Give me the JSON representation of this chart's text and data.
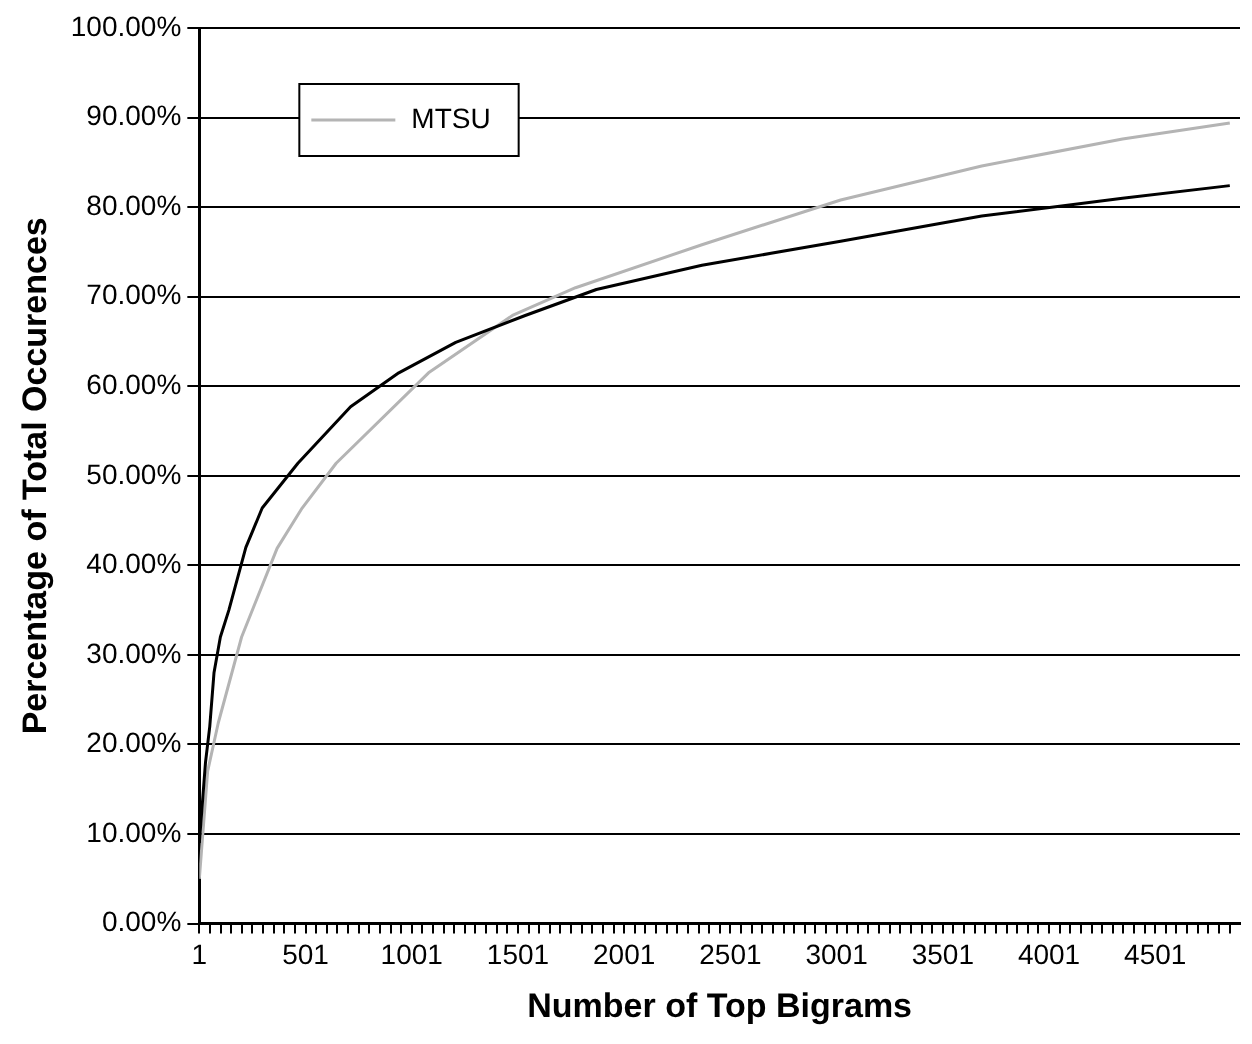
{
  "chart_data": {
    "type": "line",
    "xlabel": "Number of Top Bigrams",
    "ylabel": "Percentage of Total Occurences",
    "xlim": [
      1,
      4900
    ],
    "ylim": [
      0,
      100
    ],
    "xticks": [
      1,
      {
        "value": 51,
        "label": null
      },
      {
        "value": 101,
        "label": null
      },
      {
        "value": 151,
        "label": null
      },
      {
        "value": 201,
        "label": null
      },
      {
        "value": 251,
        "label": null
      },
      {
        "value": 301,
        "label": null
      },
      {
        "value": 351,
        "label": null
      },
      {
        "value": 401,
        "label": null
      },
      {
        "value": 451,
        "label": null
      },
      501,
      {
        "value": 551,
        "label": null
      },
      {
        "value": 601,
        "label": null
      },
      {
        "value": 651,
        "label": null
      },
      {
        "value": 701,
        "label": null
      },
      {
        "value": 751,
        "label": null
      },
      {
        "value": 801,
        "label": null
      },
      {
        "value": 851,
        "label": null
      },
      {
        "value": 901,
        "label": null
      },
      {
        "value": 951,
        "label": null
      },
      1001,
      {
        "value": 1051,
        "label": null
      },
      {
        "value": 1101,
        "label": null
      },
      {
        "value": 1151,
        "label": null
      },
      {
        "value": 1201,
        "label": null
      },
      {
        "value": 1251,
        "label": null
      },
      {
        "value": 1301,
        "label": null
      },
      {
        "value": 1351,
        "label": null
      },
      {
        "value": 1401,
        "label": null
      },
      {
        "value": 1451,
        "label": null
      },
      1501,
      {
        "value": 1551,
        "label": null
      },
      {
        "value": 1601,
        "label": null
      },
      {
        "value": 1651,
        "label": null
      },
      {
        "value": 1701,
        "label": null
      },
      {
        "value": 1751,
        "label": null
      },
      {
        "value": 1801,
        "label": null
      },
      {
        "value": 1851,
        "label": null
      },
      {
        "value": 1901,
        "label": null
      },
      {
        "value": 1951,
        "label": null
      },
      2001,
      {
        "value": 2051,
        "label": null
      },
      {
        "value": 2101,
        "label": null
      },
      {
        "value": 2151,
        "label": null
      },
      {
        "value": 2201,
        "label": null
      },
      {
        "value": 2251,
        "label": null
      },
      {
        "value": 2301,
        "label": null
      },
      {
        "value": 2351,
        "label": null
      },
      {
        "value": 2401,
        "label": null
      },
      {
        "value": 2451,
        "label": null
      },
      2501,
      {
        "value": 2551,
        "label": null
      },
      {
        "value": 2601,
        "label": null
      },
      {
        "value": 2651,
        "label": null
      },
      {
        "value": 2701,
        "label": null
      },
      {
        "value": 2751,
        "label": null
      },
      {
        "value": 2801,
        "label": null
      },
      {
        "value": 2851,
        "label": null
      },
      {
        "value": 2901,
        "label": null
      },
      {
        "value": 2951,
        "label": null
      },
      3001,
      {
        "value": 3051,
        "label": null
      },
      {
        "value": 3101,
        "label": null
      },
      {
        "value": 3151,
        "label": null
      },
      {
        "value": 3201,
        "label": null
      },
      {
        "value": 3251,
        "label": null
      },
      {
        "value": 3301,
        "label": null
      },
      {
        "value": 3351,
        "label": null
      },
      {
        "value": 3401,
        "label": null
      },
      {
        "value": 3451,
        "label": null
      },
      3501,
      {
        "value": 3551,
        "label": null
      },
      {
        "value": 3601,
        "label": null
      },
      {
        "value": 3651,
        "label": null
      },
      {
        "value": 3701,
        "label": null
      },
      {
        "value": 3751,
        "label": null
      },
      {
        "value": 3801,
        "label": null
      },
      {
        "value": 3851,
        "label": null
      },
      {
        "value": 3901,
        "label": null
      },
      {
        "value": 3951,
        "label": null
      },
      4001,
      {
        "value": 4051,
        "label": null
      },
      {
        "value": 4101,
        "label": null
      },
      {
        "value": 4151,
        "label": null
      },
      {
        "value": 4201,
        "label": null
      },
      {
        "value": 4251,
        "label": null
      },
      {
        "value": 4301,
        "label": null
      },
      {
        "value": 4351,
        "label": null
      },
      {
        "value": 4401,
        "label": null
      },
      {
        "value": 4451,
        "label": null
      },
      4501,
      {
        "value": 4551,
        "label": null
      },
      {
        "value": 4601,
        "label": null
      },
      {
        "value": 4651,
        "label": null
      },
      {
        "value": 4701,
        "label": null
      },
      {
        "value": 4751,
        "label": null
      },
      {
        "value": 4801,
        "label": null
      },
      {
        "value": 4851,
        "label": null
      }
    ],
    "yticks": [
      {
        "value": 0,
        "label": "0.00%"
      },
      {
        "value": 10,
        "label": "10.00%"
      },
      {
        "value": 20,
        "label": "20.00%"
      },
      {
        "value": 30,
        "label": "30.00%"
      },
      {
        "value": 40,
        "label": "40.00%"
      },
      {
        "value": 50,
        "label": "50.00%"
      },
      {
        "value": 60,
        "label": "60.00%"
      },
      {
        "value": 70,
        "label": "70.00%"
      },
      {
        "value": 80,
        "label": "80.00%"
      },
      {
        "value": 90,
        "label": "90.00%"
      },
      {
        "value": 100,
        "label": "100.00%"
      }
    ],
    "grid": "y",
    "legend": "top left",
    "marker": "none",
    "line_style": "solid",
    "series": [
      {
        "color": "#000000",
        "x": [
          1,
          30,
          50,
          70,
          100,
          140,
          220,
          297,
          465,
          713,
          940,
          1208,
          1535,
          1870,
          2367,
          3020,
          3684,
          4347,
          4852
        ],
        "values": [
          9,
          18,
          22,
          28,
          32,
          35,
          42,
          46.4,
          51.4,
          57.7,
          61.5,
          64.9,
          67.9,
          70.8,
          73.5,
          76.2,
          79,
          81,
          82.4
        ]
      },
      {
        "name": "MTSU",
        "color": "#b4b4b4",
        "x": [
          1,
          40,
          90,
          200,
          367,
          485,
          645,
          1080,
          1475,
          1772,
          2367,
          3020,
          3684,
          4347,
          4852
        ],
        "values": [
          5,
          17,
          22.4,
          32,
          41.9,
          46.4,
          51.4,
          61.5,
          67.9,
          71,
          75.8,
          80.8,
          84.6,
          87.6,
          89.4
        ]
      }
    ]
  }
}
